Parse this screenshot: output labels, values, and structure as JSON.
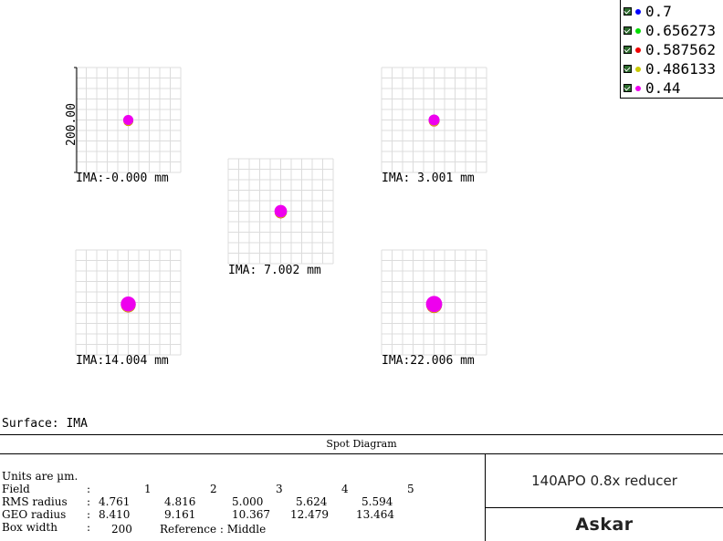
{
  "chart_data": {
    "type": "scatter",
    "title": "Spot Diagram",
    "scale_label": "200.00",
    "box_width": 200,
    "units_text": "Units are µm.",
    "wavelengths": [
      {
        "label": "0.7",
        "color": "#0000ff"
      },
      {
        "label": "0.656273",
        "color": "#00dd00"
      },
      {
        "label": "0.587562",
        "color": "#ee0000"
      },
      {
        "label": "0.486133",
        "color": "#c8c800"
      },
      {
        "label": "0.44",
        "color": "#ee00ee"
      }
    ],
    "fields": [
      {
        "label": "IMA:-0.000 mm",
        "rms": "4.761",
        "geo": "8.410",
        "centroid": [
          0,
          0
        ]
      },
      {
        "label": "IMA: 3.001 mm",
        "rms": "4.816",
        "geo": "9.161",
        "centroid": [
          0,
          0
        ]
      },
      {
        "label": "IMA: 7.002 mm",
        "rms": "5.000",
        "geo": "10.367",
        "centroid": [
          0,
          0
        ]
      },
      {
        "label": "IMA:14.004 mm",
        "rms": "5.624",
        "geo": "12.479",
        "centroid": [
          0,
          -3
        ]
      },
      {
        "label": "IMA:22.006 mm",
        "rms": "5.594",
        "geo": "13.464",
        "centroid": [
          0,
          -3
        ]
      }
    ]
  },
  "surface_text": "Surface: IMA",
  "stats": {
    "field_label": "Field",
    "field_numbers": [
      "1",
      "2",
      "3",
      "4",
      "5"
    ],
    "rms_label": "RMS radius",
    "geo_label": "GEO radius",
    "box_label": "Box width",
    "box_value": "200",
    "reference_text": "Reference  : Middle",
    "colon": ":"
  },
  "info": {
    "design_name": "140APO 0.8x reducer",
    "brand": "Askar"
  }
}
